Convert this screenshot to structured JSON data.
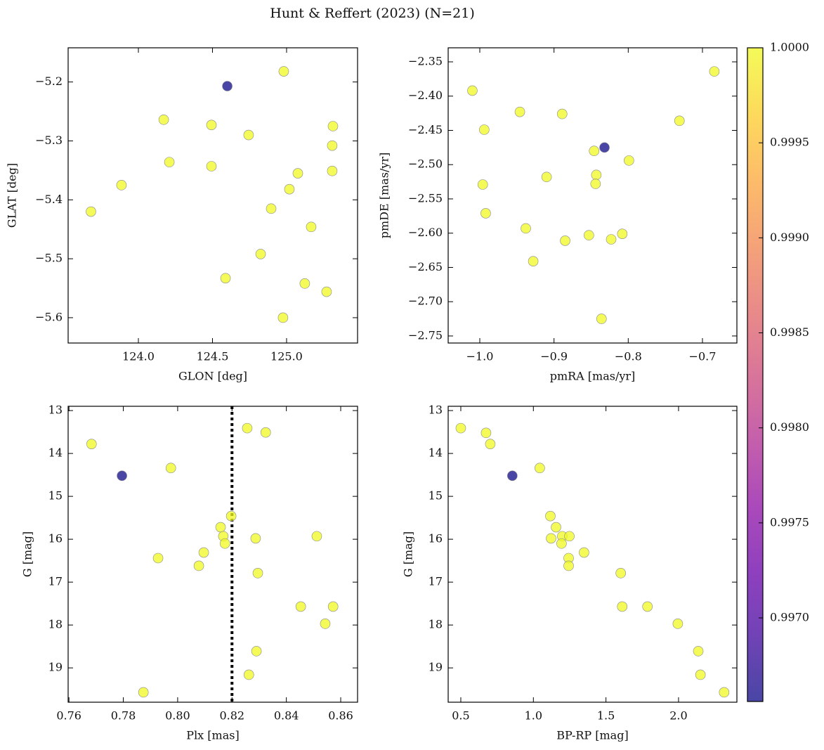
{
  "title": "Hunt & Reffert (2023) (N=21)",
  "colorbar": {
    "colormap": "plasma",
    "alpha": 0.75,
    "clim": [
      0.99656,
      1.0
    ],
    "ticks": [
      {
        "value": 0.997,
        "label": "0.9970"
      },
      {
        "value": 0.9975,
        "label": "0.9975"
      },
      {
        "value": 0.998,
        "label": "0.9980"
      },
      {
        "value": 0.9985,
        "label": "0.9985"
      },
      {
        "value": 0.999,
        "label": "0.9990"
      },
      {
        "value": 0.9995,
        "label": "0.9995"
      },
      {
        "value": 1.0,
        "label": "1.0000"
      }
    ]
  },
  "chart_data": [
    {
      "type": "scatter",
      "xlabel": "GLON [deg]",
      "ylabel": "GLAT [deg]",
      "xlim": [
        123.526,
        125.479
      ],
      "ylim": [
        -5.643,
        -5.142
      ],
      "xticks": [
        {
          "value": 124.0,
          "label": "124.0"
        },
        124.5,
        {
          "value": 125.0,
          "label": "125.0"
        }
      ],
      "yticks": [
        {
          "value": -5.6,
          "label": "−5.6"
        },
        {
          "value": -5.5,
          "label": "−5.5"
        },
        {
          "value": -5.4,
          "label": "−5.4"
        },
        {
          "value": -5.3,
          "label": "−5.3"
        },
        {
          "value": -5.2,
          "label": "−5.2"
        }
      ],
      "x": [
        123.68,
        123.886,
        124.171,
        124.209,
        124.493,
        124.493,
        124.6,
        124.744,
        124.825,
        124.588,
        124.896,
        124.981,
        125.019,
        125.076,
        125.123,
        125.166,
        124.976,
        125.27,
        125.313,
        125.308,
        125.308
      ],
      "y": [
        -5.42,
        -5.375,
        -5.264,
        -5.336,
        -5.273,
        -5.343,
        -5.207,
        -5.29,
        -5.492,
        -5.533,
        -5.415,
        -5.182,
        -5.382,
        -5.355,
        -5.542,
        -5.446,
        -5.6,
        -5.556,
        -5.275,
        -5.308,
        -5.351
      ],
      "c": [
        1.0,
        1.0,
        1.0,
        1.0,
        1.0,
        1.0,
        0.99656,
        1.0,
        1.0,
        1.0,
        1.0,
        1.0,
        1.0,
        1.0,
        1.0,
        1.0,
        1.0,
        1.0,
        1.0,
        1.0,
        1.0
      ]
    },
    {
      "type": "scatter",
      "xlabel": "pmRA [mas/yr]",
      "ylabel": "pmDE [mas/yr]",
      "xlim": [
        -1.0426,
        -0.6536
      ],
      "ylim": [
        -2.7603,
        -2.3295
      ],
      "xticks": [
        {
          "value": -1.0,
          "label": "−1.0"
        },
        {
          "value": -0.9,
          "label": "−0.9"
        },
        {
          "value": -0.8,
          "label": "−0.8"
        },
        {
          "value": -0.7,
          "label": "−0.7"
        }
      ],
      "yticks": [
        {
          "value": -2.75,
          "label": "−2.75"
        },
        {
          "value": -2.7,
          "label": "−2.70"
        },
        {
          "value": -2.65,
          "label": "−2.65"
        },
        {
          "value": -2.6,
          "label": "−2.60"
        },
        {
          "value": -2.55,
          "label": "−2.55"
        },
        {
          "value": -2.5,
          "label": "−2.50"
        },
        {
          "value": -2.45,
          "label": "−2.45"
        },
        {
          "value": -2.4,
          "label": "−2.40"
        },
        {
          "value": -2.35,
          "label": "−2.35"
        }
      ],
      "x": [
        -1.01,
        -0.994,
        -0.996,
        -0.992,
        -0.946,
        -0.938,
        -0.928,
        -0.91,
        -0.889,
        -0.885,
        -0.853,
        -0.846,
        -0.843,
        -0.844,
        -0.832,
        -0.836,
        -0.823,
        -0.808,
        -0.799,
        -0.731,
        -0.684
      ],
      "y": [
        -2.392,
        -2.449,
        -2.529,
        -2.571,
        -2.423,
        -2.593,
        -2.641,
        -2.518,
        -2.426,
        -2.611,
        -2.603,
        -2.48,
        -2.515,
        -2.528,
        -2.475,
        -2.725,
        -2.609,
        -2.601,
        -2.494,
        -2.436,
        -2.364
      ],
      "c": [
        1.0,
        1.0,
        1.0,
        1.0,
        1.0,
        1.0,
        1.0,
        1.0,
        1.0,
        1.0,
        1.0,
        1.0,
        1.0,
        1.0,
        0.99656,
        1.0,
        1.0,
        1.0,
        1.0,
        1.0,
        1.0
      ]
    },
    {
      "type": "scatter",
      "xlabel": "Plx [mas]",
      "ylabel": "G [mag]",
      "xlim": [
        0.7597,
        0.8662
      ],
      "ylim": [
        19.8,
        12.9
      ],
      "vline": 0.82,
      "xticks": [
        0.76,
        0.78,
        {
          "value": 0.8,
          "label": "0.80"
        },
        0.82,
        0.84,
        0.86
      ],
      "yticks": [
        13,
        14,
        15,
        16,
        17,
        18,
        19
      ],
      "x": [
        0.7683,
        0.7795,
        0.7975,
        0.8256,
        0.8324,
        0.8197,
        0.8158,
        0.8168,
        0.8174,
        0.8096,
        0.8078,
        0.7928,
        0.8287,
        0.8512,
        0.8295,
        0.8453,
        0.8572,
        0.8543,
        0.829,
        0.8262,
        0.7874
      ],
      "y": [
        13.78,
        14.52,
        14.34,
        13.41,
        13.51,
        15.46,
        15.72,
        15.93,
        16.1,
        16.31,
        16.62,
        16.44,
        15.98,
        15.93,
        16.79,
        17.57,
        17.57,
        17.97,
        18.61,
        19.16,
        19.57
      ],
      "c": [
        1.0,
        0.99656,
        1.0,
        1.0,
        1.0,
        1.0,
        1.0,
        1.0,
        1.0,
        1.0,
        1.0,
        1.0,
        1.0,
        1.0,
        1.0,
        1.0,
        1.0,
        1.0,
        1.0,
        1.0,
        1.0
      ]
    },
    {
      "type": "scatter",
      "xlabel": "BP-RP [mag]",
      "ylabel": "G [mag]",
      "xlim": [
        0.413,
        2.402
      ],
      "ylim": [
        19.8,
        12.9
      ],
      "xticks": [
        0.5,
        {
          "value": 1.0,
          "label": "1.0"
        },
        1.5,
        {
          "value": 2.0,
          "label": "2.0"
        }
      ],
      "yticks": [
        13,
        14,
        15,
        16,
        17,
        18,
        19
      ],
      "x": [
        0.5,
        0.674,
        0.703,
        0.855,
        1.044,
        1.117,
        1.156,
        1.122,
        1.199,
        1.248,
        1.194,
        1.243,
        1.243,
        1.349,
        1.602,
        1.612,
        1.786,
        1.995,
        2.136,
        2.151,
        2.314
      ],
      "y": [
        13.41,
        13.52,
        13.78,
        14.52,
        14.34,
        15.46,
        15.72,
        15.98,
        15.93,
        15.93,
        16.1,
        16.44,
        16.62,
        16.31,
        16.79,
        17.57,
        17.57,
        17.97,
        18.61,
        19.16,
        19.57
      ],
      "c": [
        1.0,
        1.0,
        1.0,
        0.99656,
        1.0,
        1.0,
        1.0,
        1.0,
        1.0,
        1.0,
        1.0,
        1.0,
        1.0,
        1.0,
        1.0,
        1.0,
        1.0,
        1.0,
        1.0,
        1.0,
        1.0
      ]
    }
  ]
}
